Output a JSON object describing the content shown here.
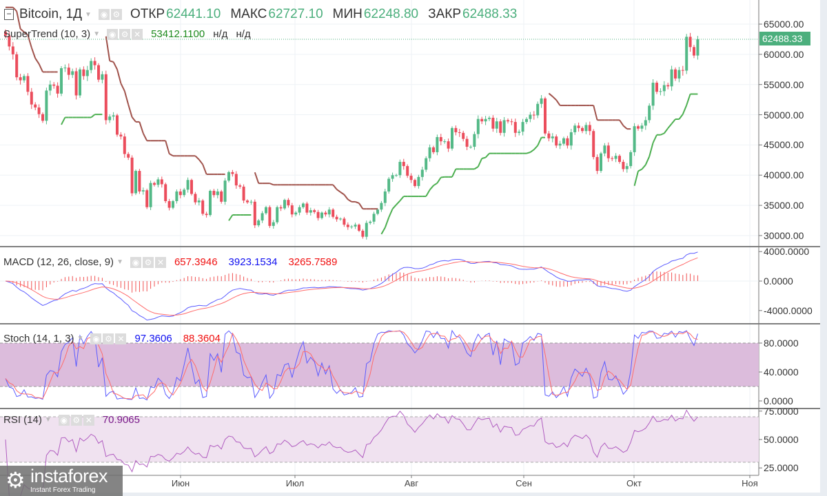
{
  "header": {
    "symbol": "Bitcoin, 1Д",
    "open_label": "ОТКР",
    "open": "62441.10",
    "high_label": "МАКС",
    "high": "62727.10",
    "low_label": "МИН",
    "low": "62248.80",
    "close_label": "ЗАКР",
    "close": "62488.33"
  },
  "indicators": {
    "supertrend": {
      "name": "SuperTrend (10, 3)",
      "value": "53412.1100",
      "na1": "н/д",
      "na2": "н/д"
    },
    "macd": {
      "name": "MACD (12, 26, close, 9)",
      "hist": "657.3946",
      "macd": "3923.1534",
      "signal": "3265.7589"
    },
    "stoch": {
      "name": "Stoch (14, 1, 3)",
      "k": "97.3606",
      "d": "88.3604"
    },
    "rsi": {
      "name": "RSI (14)",
      "value": "70.9065"
    }
  },
  "price_axis": [
    "65000.00",
    "60000.00",
    "55000.00",
    "50000.00",
    "45000.00",
    "40000.00",
    "35000.00",
    "30000.00"
  ],
  "last_price": "62488.33",
  "macd_axis": [
    "4000.0000",
    "0.0000",
    "-4000.0000"
  ],
  "stoch_axis": [
    "80.0000",
    "40.0000",
    "0.0000"
  ],
  "rsi_axis": [
    "75.0000",
    "50.0000",
    "25.0000"
  ],
  "time_axis": [
    "Июн",
    "Июл",
    "Авг",
    "Сен",
    "Окт",
    "Ноя"
  ],
  "logo": {
    "name": "instaforex",
    "tagline": "Instant Forex Trading"
  },
  "colors": {
    "up": "#53b987",
    "down": "#eb4d5c",
    "st_up": "#4caf50",
    "st_down": "#a0524b",
    "macd": "#5b5bff",
    "signal": "#ff6b6b",
    "stoch_fill": "#dcbcdc",
    "rsi_fill": "#f0e2f0",
    "rsi_line": "#b05cc0"
  },
  "chart_data": {
    "type": "candlestick",
    "start": "2021-04-15",
    "interval": "1D",
    "closes": [
      63100,
      61300,
      60000,
      56200,
      55700,
      56400,
      53800,
      51700,
      51200,
      50100,
      49000,
      54000,
      55000,
      54800,
      53500,
      57700,
      57800,
      56600,
      57200,
      53200,
      57500,
      56400,
      57400,
      58900,
      58200,
      55800,
      56700,
      49100,
      49700,
      49900,
      46700,
      46400,
      43500,
      42900,
      37000,
      40700,
      37300,
      37500,
      34700,
      38700,
      38400,
      39300,
      38500,
      35700,
      34600,
      35700,
      37300,
      36700,
      37600,
      39200,
      36900,
      35500,
      35800,
      33600,
      33400,
      37400,
      36700,
      37300,
      35600,
      39100,
      40500,
      40200,
      38300,
      38100,
      35800,
      35500,
      35600,
      31700,
      32500,
      33700,
      34700,
      31600,
      32200,
      34700,
      34500,
      35900,
      35000,
      33500,
      33800,
      34700,
      35300,
      33800,
      34200,
      33900,
      32900,
      33800,
      33500,
      34300,
      33100,
      32700,
      32800,
      31800,
      31400,
      31500,
      31800,
      30800,
      29800,
      32100,
      32300,
      33600,
      34300,
      35400,
      37300,
      39400,
      40000,
      40000,
      42200,
      41500,
      39900,
      39200,
      38200,
      39700,
      40900,
      42800,
      44600,
      43800,
      46300,
      45600,
      45600,
      44400,
      47800,
      47100,
      47000,
      46000,
      44700,
      44700,
      46800,
      49300,
      48900,
      49300,
      49500,
      47700,
      48900,
      47000,
      49100,
      48900,
      48800,
      47000,
      47200,
      48800,
      49300,
      50000,
      49900,
      51800,
      52700,
      46900,
      46100,
      46400,
      44900,
      45200,
      46100,
      44900,
      47100,
      48200,
      47800,
      47300,
      48300,
      47300,
      43000,
      40700,
      43600,
      44900,
      42800,
      42700,
      43200,
      42200,
      41000,
      41500,
      43800,
      48100,
      47700,
      48200,
      49100,
      51500,
      55300,
      53800,
      53900,
      54900,
      54700,
      57500,
      56000,
      57400,
      57300,
      62900,
      61200,
      59800,
      62488
    ]
  }
}
